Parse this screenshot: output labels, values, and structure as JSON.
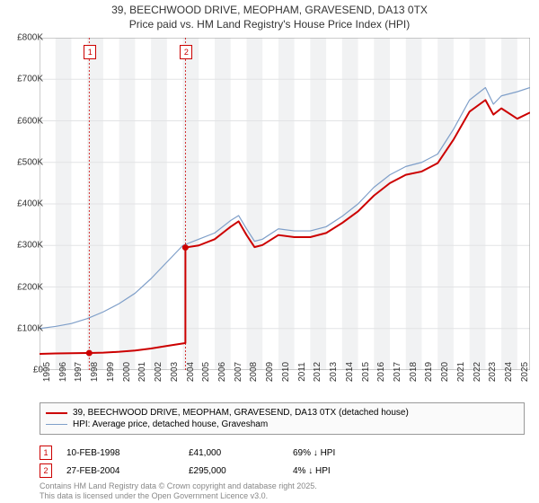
{
  "title_line1": "39, BEECHWOOD DRIVE, MEOPHAM, GRAVESEND, DA13 0TX",
  "title_line2": "Price paid vs. HM Land Registry's House Price Index (HPI)",
  "chart": {
    "type": "line",
    "background_color": "#ffffff",
    "alt_band_color": "#f1f2f3",
    "grid_color": "#e2e3e5",
    "xlim": [
      1995,
      2025.8
    ],
    "ylim": [
      0,
      800000
    ],
    "ytick_step": 100000,
    "ytick_labels": [
      "£0",
      "£100K",
      "£200K",
      "£300K",
      "£400K",
      "£500K",
      "£600K",
      "£700K",
      "£800K"
    ],
    "xtick_step": 1,
    "xtick_labels": [
      "1995",
      "1996",
      "1997",
      "1998",
      "1999",
      "2000",
      "2001",
      "2002",
      "2003",
      "2004",
      "2005",
      "2006",
      "2007",
      "2008",
      "2009",
      "2010",
      "2011",
      "2012",
      "2013",
      "2014",
      "2015",
      "2016",
      "2017",
      "2018",
      "2019",
      "2020",
      "2021",
      "2022",
      "2023",
      "2024",
      "2025"
    ],
    "series": [
      {
        "name": "hpi",
        "label": "HPI: Average price, detached house, Gravesham",
        "color": "#7f9fc9",
        "width": 1.2,
        "x": [
          1995,
          1996,
          1997,
          1998,
          1999,
          2000,
          2001,
          2002,
          2003,
          2004,
          2005,
          2006,
          2007,
          2007.5,
          2008,
          2008.5,
          2009,
          2010,
          2011,
          2012,
          2013,
          2014,
          2015,
          2016,
          2017,
          2018,
          2019,
          2020,
          2021,
          2022,
          2023,
          2023.5,
          2024,
          2025,
          2025.8
        ],
        "y": [
          100000,
          105000,
          112000,
          124000,
          140000,
          160000,
          185000,
          220000,
          260000,
          300000,
          315000,
          330000,
          360000,
          372000,
          340000,
          310000,
          315000,
          340000,
          335000,
          335000,
          345000,
          370000,
          400000,
          440000,
          470000,
          490000,
          500000,
          520000,
          580000,
          650000,
          680000,
          640000,
          660000,
          670000,
          680000
        ]
      },
      {
        "name": "price_paid",
        "label": "39, BEECHWOOD DRIVE, MEOPHAM, GRAVESEND, DA13 0TX (detached house)",
        "color": "#cc0000",
        "width": 2,
        "x": [
          1995,
          1996,
          1997,
          1998,
          1998.12,
          1999,
          2000,
          2001,
          2002,
          2003,
          2004,
          2004.16,
          2004.161,
          2005,
          2006,
          2007,
          2007.5,
          2008,
          2008.5,
          2009,
          2010,
          2011,
          2012,
          2013,
          2014,
          2015,
          2016,
          2017,
          2018,
          2019,
          2020,
          2021,
          2022,
          2023,
          2023.5,
          2024,
          2025,
          2025.8
        ],
        "y": [
          39000,
          40000,
          40500,
          41000,
          41000,
          42000,
          44000,
          47000,
          52000,
          58000,
          64000,
          65000,
          295000,
          300000,
          315000,
          345000,
          358000,
          325000,
          296000,
          301000,
          325000,
          320000,
          320000,
          330000,
          354000,
          382000,
          420000,
          450000,
          470000,
          478000,
          498000,
          555000,
          622000,
          650000,
          615000,
          630000,
          605000,
          620000
        ]
      }
    ],
    "sale_markers": [
      {
        "n": "1",
        "x": 1998.12,
        "y": 41000,
        "color": "#cc0000"
      },
      {
        "n": "2",
        "x": 2004.16,
        "y": 295000,
        "color": "#cc0000"
      }
    ]
  },
  "legend": {
    "items": [
      {
        "color": "#cc0000",
        "width": 2,
        "label": "39, BEECHWOOD DRIVE, MEOPHAM, GRAVESEND, DA13 0TX (detached house)"
      },
      {
        "color": "#7f9fc9",
        "width": 1.2,
        "label": "HPI: Average price, detached house, Gravesham"
      }
    ]
  },
  "sales": [
    {
      "n": "1",
      "color": "#cc0000",
      "date": "10-FEB-1998",
      "price": "£41,000",
      "hpi": "69% ↓ HPI"
    },
    {
      "n": "2",
      "color": "#cc0000",
      "date": "27-FEB-2004",
      "price": "£295,000",
      "hpi": "4% ↓ HPI"
    }
  ],
  "attribution_line1": "Contains HM Land Registry data © Crown copyright and database right 2025.",
  "attribution_line2": "This data is licensed under the Open Government Licence v3.0."
}
